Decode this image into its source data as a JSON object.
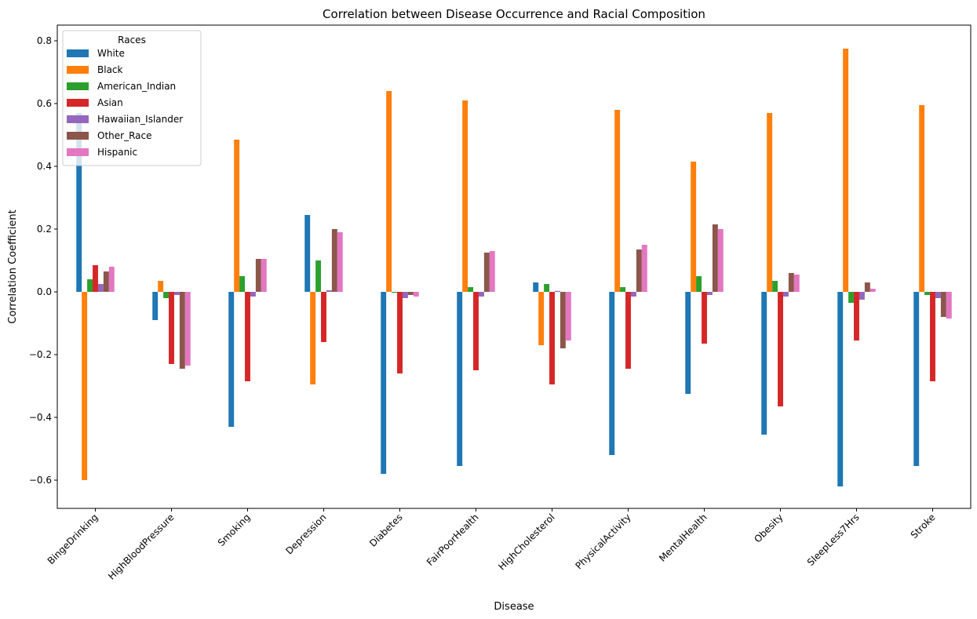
{
  "chart_data": {
    "type": "bar",
    "title": "Correlation between Disease Occurrence and Racial Composition",
    "xlabel": "Disease",
    "ylabel": "Correlation Coefficient",
    "ylim": [
      -0.69,
      0.85
    ],
    "yticks": [
      -0.6,
      -0.4,
      -0.2,
      0.0,
      0.2,
      0.4,
      0.6,
      0.8
    ],
    "ytick_labels": [
      "−0.6",
      "−0.4",
      "−0.2",
      "0.0",
      "0.2",
      "0.4",
      "0.6",
      "0.8"
    ],
    "legend_title": "Races",
    "legend_position": "top-left",
    "categories": [
      "BingeDrinking",
      "HighBloodPressure",
      "Smoking",
      "Depression",
      "Diabetes",
      "FairPoorHealth",
      "HighCholesterol",
      "PhysicalActivity",
      "MentalHealth",
      "Obesity",
      "SleepLess7Hrs",
      "Stroke"
    ],
    "series": [
      {
        "name": "White",
        "color": "#1f77b4",
        "values": [
          0.57,
          -0.09,
          -0.43,
          0.245,
          -0.58,
          -0.555,
          0.03,
          -0.52,
          -0.325,
          -0.455,
          -0.62,
          -0.555
        ]
      },
      {
        "name": "Black",
        "color": "#ff7f0e",
        "values": [
          -0.6,
          0.035,
          0.485,
          -0.295,
          0.64,
          0.61,
          -0.17,
          0.58,
          0.415,
          0.57,
          0.775,
          0.595
        ]
      },
      {
        "name": "American_Indian",
        "color": "#2ca02c",
        "values": [
          0.04,
          -0.02,
          0.05,
          0.1,
          -0.003,
          0.015,
          0.025,
          0.015,
          0.05,
          0.035,
          -0.035,
          -0.01
        ]
      },
      {
        "name": "Asian",
        "color": "#d62728",
        "values": [
          0.085,
          -0.23,
          -0.285,
          -0.16,
          -0.26,
          -0.25,
          -0.295,
          -0.245,
          -0.165,
          -0.365,
          -0.155,
          -0.285
        ]
      },
      {
        "name": "Hawaiian_Islander",
        "color": "#9467bd",
        "values": [
          0.025,
          -0.01,
          -0.015,
          0.005,
          -0.02,
          -0.015,
          0.003,
          -0.015,
          -0.01,
          -0.015,
          -0.025,
          -0.02
        ]
      },
      {
        "name": "Other_Race",
        "color": "#8c564b",
        "values": [
          0.065,
          -0.245,
          0.105,
          0.2,
          -0.01,
          0.125,
          -0.18,
          0.135,
          0.215,
          0.06,
          0.03,
          -0.08
        ]
      },
      {
        "name": "Hispanic",
        "color": "#e377c2",
        "values": [
          0.08,
          -0.235,
          0.105,
          0.19,
          -0.015,
          0.13,
          -0.155,
          0.15,
          0.2,
          0.055,
          0.01,
          -0.085
        ]
      }
    ]
  }
}
